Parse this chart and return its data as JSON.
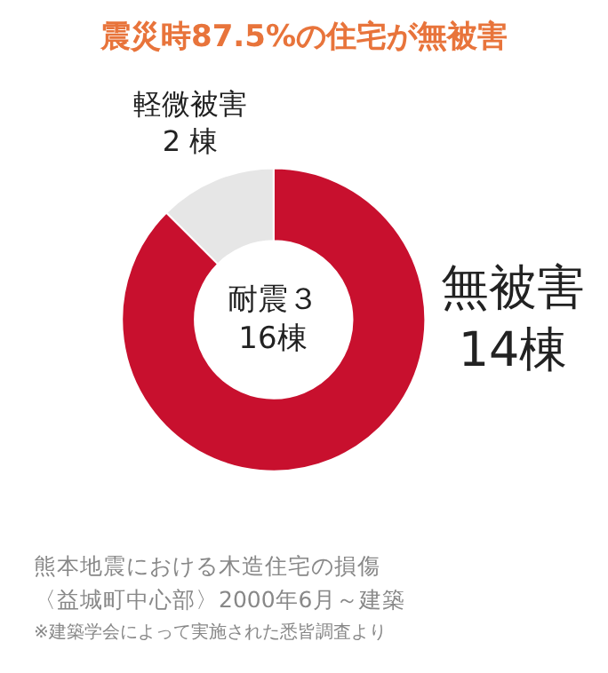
{
  "chart_data": {
    "type": "donut",
    "title": "震災時87.5%の住宅が無被害",
    "categories": [
      "無被害",
      "軽微被害"
    ],
    "values": [
      14,
      2
    ],
    "colors": [
      "#c8102e",
      "#e6e6e6"
    ],
    "value_labels": [
      "14棟",
      "2 棟"
    ],
    "annotations": [
      "耐震３\n16棟",
      "熊本地震における木造住宅の損傷",
      "〈益城町中心部〉2000年6月～建築",
      "※建築学会によって実施された悉皆調査より"
    ],
    "legend": false
  }
}
